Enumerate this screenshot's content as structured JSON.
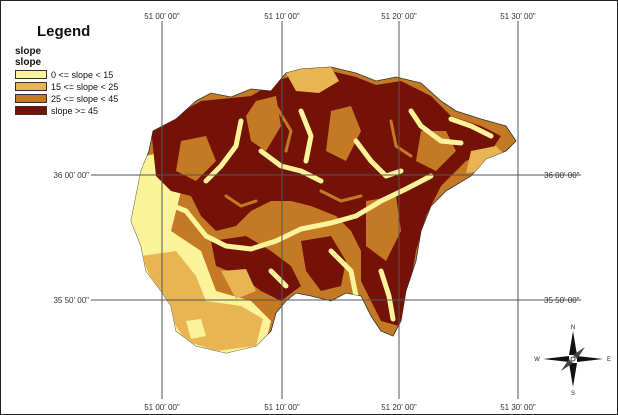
{
  "legend": {
    "title": "Legend",
    "layer_name": "slope",
    "field_name": "slope",
    "classes": [
      {
        "label": "0 <= slope < 15",
        "color": "#fbf39a"
      },
      {
        "label": "15 <= slope < 25",
        "color": "#e8b552"
      },
      {
        "label": "25 <= slope < 45",
        "color": "#c47a25"
      },
      {
        "label": "slope >= 45",
        "color": "#741208"
      }
    ]
  },
  "graticule": {
    "longitudes": [
      "51 00' 00\"",
      "51 10' 00\"",
      "51 20' 00\"",
      "51 30' 00\""
    ],
    "latitudes": [
      "36 00' 00\"",
      "35 50' 00\""
    ]
  },
  "north_arrow": {
    "icon": "north-arrow-compass-icon",
    "n": "N",
    "s": "S",
    "e": "E",
    "w": "W"
  }
}
